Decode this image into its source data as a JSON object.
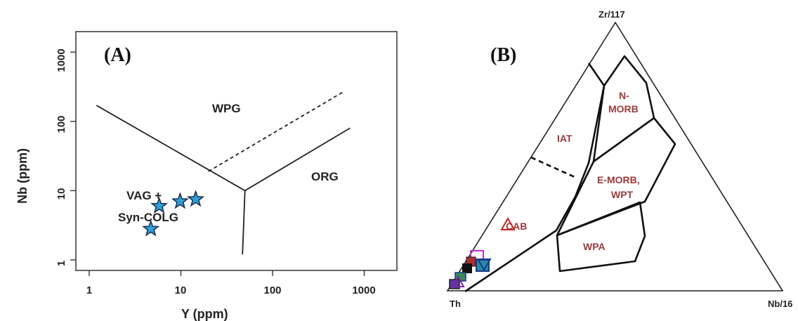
{
  "chart_data": [
    {
      "type": "scatter",
      "panel_label": "(A)",
      "xlabel": "Y (ppm)",
      "ylabel": "Nb (ppm)",
      "xscale": "log",
      "yscale": "log",
      "xlim": [
        0.8,
        2000
      ],
      "ylim": [
        0.8,
        2000
      ],
      "xticks": [
        "1",
        "10",
        "100",
        "1000"
      ],
      "yticks": [
        "1",
        "10",
        "100",
        "1000"
      ],
      "field_labels": [
        "WPG",
        "ORG",
        "VAG +",
        "Syn-COLG"
      ],
      "series": [
        {
          "marker": "star",
          "color": "#2f9fd8",
          "points": [
            {
              "x": 5.8,
              "y": 6.0
            },
            {
              "x": 9.8,
              "y": 7.0
            },
            {
              "x": 14.5,
              "y": 7.5
            },
            {
              "x": 4.7,
              "y": 2.8
            }
          ]
        }
      ],
      "boundaries": [
        {
          "style": "solid",
          "points": [
            [
              1.2,
              170
            ],
            [
              50,
              10
            ],
            [
              700,
              80
            ]
          ]
        },
        {
          "style": "solid",
          "points": [
            [
              50,
              10
            ],
            [
              47,
              1.2
            ]
          ]
        },
        {
          "style": "dashed",
          "points": [
            [
              20,
              19
            ],
            [
              600,
              270
            ]
          ]
        }
      ]
    },
    {
      "type": "ternary",
      "panel_label": "(B)",
      "apex_labels": {
        "top": "Zr/117",
        "left": "Th",
        "right": "Nb/16"
      },
      "field_labels": [
        "N-",
        "MORB",
        "IAT",
        "E-MORB,",
        "WPT",
        "CAB",
        "WPA"
      ],
      "label_color": "#9b3a3a"
    }
  ]
}
